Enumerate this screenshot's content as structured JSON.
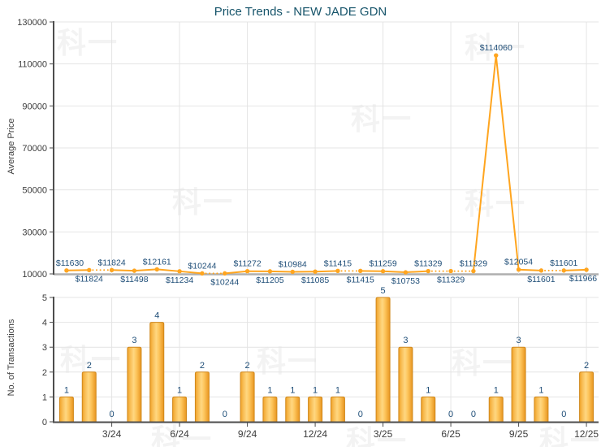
{
  "title": "Price Trends - NEW JADE GDN",
  "watermark": {
    "text": "科一"
  },
  "colors": {
    "title": "#16546a",
    "point_label": "#1f4e78",
    "tick_text": "#3c3c3c",
    "axis": "#4d4d4d",
    "grid": "#e4e4e4",
    "price_baseline": "#afafaf",
    "line": "#ffa51f",
    "bar_stroke": "#d0881c",
    "bar_grad_edge1": "#f0a127",
    "bar_grad_mid": "#ffd781",
    "bar_grad_edge2": "#e8951f",
    "watermark": "#f3f3f3"
  },
  "price_chart": {
    "y_axis_label": "Average Price",
    "y_tick_labels": [
      "10000",
      "30000",
      "50000",
      "70000",
      "90000",
      "110000",
      "130000"
    ]
  },
  "volume_chart": {
    "y_axis_label": "No. of Transactions",
    "y_tick_labels": [
      "0",
      "1",
      "2",
      "3",
      "4",
      "5"
    ]
  },
  "chart_data": [
    {
      "type": "line",
      "title": "Price Trends - NEW JADE GDN",
      "ylabel": "Average Price",
      "ylim": [
        10000,
        130000
      ],
      "yticks": [
        10000,
        30000,
        50000,
        70000,
        90000,
        110000,
        130000
      ],
      "x": [
        1,
        2,
        3,
        4,
        5,
        6,
        7,
        8,
        9,
        10,
        11,
        12,
        13,
        14,
        15,
        16,
        17,
        18,
        19,
        20,
        21,
        22,
        23,
        24
      ],
      "values": [
        11630,
        11824,
        11824,
        11498,
        12161,
        11234,
        10244,
        10244,
        11272,
        11205,
        10984,
        11085,
        11415,
        11415,
        11259,
        10753,
        11329,
        11329,
        11329,
        114060,
        12054,
        11601,
        11601,
        11966
      ],
      "point_labels": [
        "$11630",
        "$11824",
        "$11824",
        "$11498",
        "$12161",
        "$11234",
        "$10244",
        "$10244",
        "$11272",
        "$11205",
        "$10984",
        "$11085",
        "$11415",
        "$11415",
        "$11259",
        "$10753",
        "$11329",
        "$11329",
        "$11329",
        "$114060",
        "$12054",
        "$11601",
        "$11601",
        "$11966"
      ],
      "label_side": [
        "above",
        "below",
        "above",
        "below",
        "above",
        "below",
        "above",
        "below",
        "above",
        "below",
        "above",
        "below",
        "above",
        "below",
        "above",
        "below",
        "above",
        "below",
        "above",
        "above",
        "above",
        "below",
        "above",
        "below"
      ],
      "dotted_into_point": [
        3,
        8,
        14,
        18,
        19,
        23
      ],
      "grid": true,
      "legend": null
    },
    {
      "type": "bar",
      "ylabel": "No. of Transactions",
      "ylim": [
        0,
        5
      ],
      "yticks": [
        0,
        1,
        2,
        3,
        4,
        5
      ],
      "x": [
        1,
        2,
        3,
        4,
        5,
        6,
        7,
        8,
        9,
        10,
        11,
        12,
        13,
        14,
        15,
        16,
        17,
        18,
        19,
        20,
        21,
        22,
        23,
        24
      ],
      "values": [
        1,
        2,
        0,
        3,
        4,
        1,
        2,
        0,
        2,
        1,
        1,
        1,
        1,
        0,
        5,
        3,
        1,
        0,
        0,
        1,
        3,
        1,
        0,
        2
      ],
      "x_ticks": [
        {
          "i": 3,
          "label": "3/24"
        },
        {
          "i": 6,
          "label": "6/24"
        },
        {
          "i": 9,
          "label": "9/24"
        },
        {
          "i": 12,
          "label": "12/24"
        },
        {
          "i": 15,
          "label": "3/25"
        },
        {
          "i": 18,
          "label": "6/25"
        },
        {
          "i": 21,
          "label": "9/25"
        },
        {
          "i": 24,
          "label": "12/25"
        }
      ],
      "grid": true
    }
  ]
}
